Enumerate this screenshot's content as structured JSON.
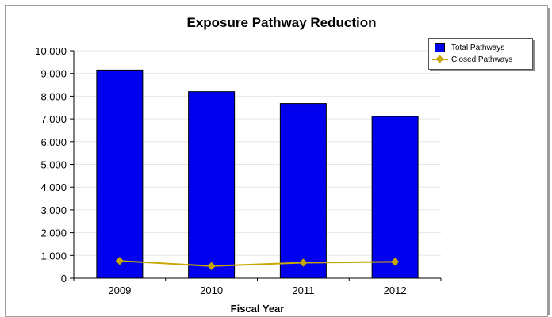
{
  "chart_data": {
    "type": "bar",
    "title": "Exposure Pathway Reduction",
    "xlabel": "Fiscal Year",
    "ylabel": "",
    "categories": [
      "2009",
      "2010",
      "2011",
      "2012"
    ],
    "ylim": [
      0,
      10000
    ],
    "yticks": [
      0,
      1000,
      2000,
      3000,
      4000,
      5000,
      6000,
      7000,
      8000,
      9000,
      10000
    ],
    "ytick_labels": [
      "0",
      "1,000",
      "2,000",
      "3,000",
      "4,000",
      "5,000",
      "6,000",
      "7,000",
      "8,000",
      "9,000",
      "10,000"
    ],
    "grid": true,
    "legend_position": "top-right",
    "series": [
      {
        "name": "Total Pathways",
        "type": "bar",
        "color": "#0000ee",
        "values": [
          9150,
          8200,
          7680,
          7110
        ]
      },
      {
        "name": "Closed Pathways",
        "type": "line",
        "color": "#c8a800",
        "marker": "diamond",
        "values": [
          760,
          530,
          680,
          720
        ]
      }
    ]
  }
}
